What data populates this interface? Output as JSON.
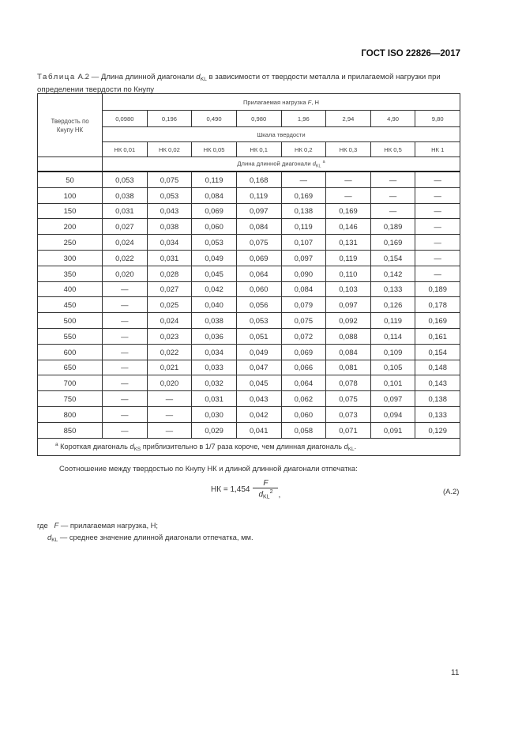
{
  "header": {
    "standard": "ГОСТ ISO 22826—2017"
  },
  "caption": {
    "prefix": "Таблица",
    "number": "А.2",
    "text_a": " — Длина длинной диагонали ",
    "var": "d",
    "sub": "KL",
    "text_b": " в зависимости от твердости металла и прилагаемой нагрузки при определении твердости по Кнупу"
  },
  "table": {
    "row_header": "Твердость по Кнупу НК",
    "load_label": "Прилагаемая нагрузка ",
    "load_var": "F",
    "load_unit": ", Н",
    "loads": [
      "0,0980",
      "0,196",
      "0,490",
      "0,980",
      "1,96",
      "2,94",
      "4,90",
      "9,80"
    ],
    "scale_label": "Шкала твердости",
    "scales": [
      "НК 0,01",
      "НК 0,02",
      "НК 0,05",
      "НК 0,1",
      "НК 0,2",
      "НК 0,3",
      "НК 0,5",
      "НК 1"
    ],
    "length_label": "Длина длинной диагонали ",
    "length_var": "d",
    "length_sub": "KL",
    "length_note": "a",
    "rows": [
      [
        "50",
        "0,053",
        "0,075",
        "0,119",
        "0,168",
        "—",
        "—",
        "—",
        "—"
      ],
      [
        "100",
        "0,038",
        "0,053",
        "0,084",
        "0,119",
        "0,169",
        "—",
        "—",
        "—"
      ],
      [
        "150",
        "0,031",
        "0,043",
        "0,069",
        "0,097",
        "0,138",
        "0,169",
        "—",
        "—"
      ],
      [
        "200",
        "0,027",
        "0,038",
        "0,060",
        "0,084",
        "0,119",
        "0,146",
        "0,189",
        "—"
      ],
      [
        "250",
        "0,024",
        "0,034",
        "0,053",
        "0,075",
        "0,107",
        "0,131",
        "0,169",
        "—"
      ],
      [
        "300",
        "0,022",
        "0,031",
        "0,049",
        "0,069",
        "0,097",
        "0,119",
        "0,154",
        "—"
      ],
      [
        "350",
        "0,020",
        "0,028",
        "0,045",
        "0,064",
        "0,090",
        "0,110",
        "0,142",
        "—"
      ],
      [
        "400",
        "—",
        "0,027",
        "0,042",
        "0,060",
        "0,084",
        "0,103",
        "0,133",
        "0,189"
      ],
      [
        "450",
        "—",
        "0,025",
        "0,040",
        "0,056",
        "0,079",
        "0,097",
        "0,126",
        "0,178"
      ],
      [
        "500",
        "—",
        "0,024",
        "0,038",
        "0,053",
        "0,075",
        "0,092",
        "0,119",
        "0,169"
      ],
      [
        "550",
        "—",
        "0,023",
        "0,036",
        "0,051",
        "0,072",
        "0,088",
        "0,114",
        "0,161"
      ],
      [
        "600",
        "—",
        "0,022",
        "0,034",
        "0,049",
        "0,069",
        "0,084",
        "0,109",
        "0,154"
      ],
      [
        "650",
        "—",
        "0,021",
        "0,033",
        "0,047",
        "0,066",
        "0,081",
        "0,105",
        "0,148"
      ],
      [
        "700",
        "—",
        "0,020",
        "0,032",
        "0,045",
        "0,064",
        "0,078",
        "0,101",
        "0,143"
      ],
      [
        "750",
        "—",
        "—",
        "0,031",
        "0,043",
        "0,062",
        "0,075",
        "0,097",
        "0,138"
      ],
      [
        "800",
        "—",
        "—",
        "0,030",
        "0,042",
        "0,060",
        "0,073",
        "0,094",
        "0,133"
      ],
      [
        "850",
        "—",
        "—",
        "0,029",
        "0,041",
        "0,058",
        "0,071",
        "0,091",
        "0,129"
      ]
    ],
    "footnote": {
      "mark": "a",
      "text_a": " Короткая диагональ ",
      "var1": "d",
      "sub1": "KS",
      "text_b": " приблизительно в 1/7 раза короче, чем длинная диагональ ",
      "var2": "d",
      "sub2": "KL",
      "text_c": "."
    }
  },
  "body": {
    "paragraph": "Соотношение между твердостью по Кнупу НК и длиной длинной диагонали отпечатка:",
    "formula": {
      "lhs": "НК = 1,454",
      "numerator": "F",
      "den_var": "d",
      "den_sub": "KL",
      "den_sup": "2",
      "end": ",",
      "number": "(А.2)"
    },
    "where_label": "где",
    "where": [
      {
        "var": "F",
        "sub": "",
        "text": " — прилагаемая нагрузка, Н;"
      },
      {
        "var": "d",
        "sub": "KL",
        "text": " — среднее значение длинной диагонали отпечатка, мм."
      }
    ]
  },
  "page_number": "11"
}
